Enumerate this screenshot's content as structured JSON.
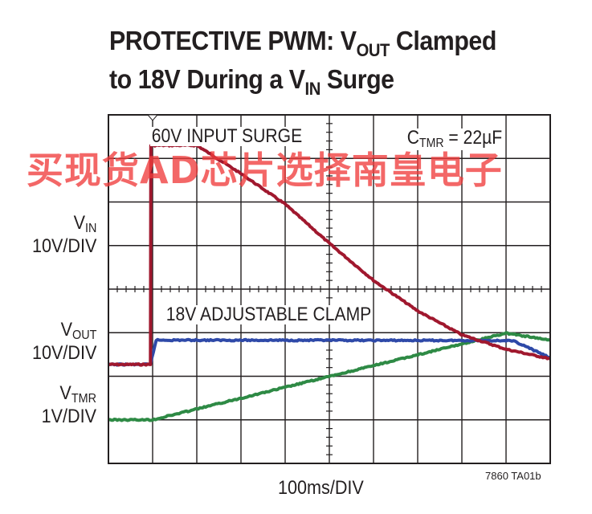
{
  "title": {
    "line1_prefix": "PROTECTIVE PWM: V",
    "line1_sub": "OUT",
    "line1_suffix": " Clamped",
    "line2_prefix": "to 18V During a V",
    "line2_sub": "IN",
    "line2_suffix": " Surge"
  },
  "channels": [
    {
      "symbol": "V",
      "sub": "IN",
      "scale": "10V/DIV",
      "color": "#a0182e"
    },
    {
      "symbol": "V",
      "sub": "OUT",
      "scale": "10V/DIV",
      "color": "#2e49a8"
    },
    {
      "symbol": "V",
      "sub": "TMR",
      "scale": "1V/DIV",
      "color": "#2e8a45"
    }
  ],
  "annotations": {
    "input_surge": "60V INPUT SURGE",
    "ctmr_prefix": "C",
    "ctmr_sub": "TMR",
    "ctmr_suffix": " = 22µF",
    "clamp": "18V ADJUSTABLE CLAMP"
  },
  "xlabel": "100ms/DIV",
  "figure_code": "7860 TA01b",
  "watermark": "买现货AD芯片选择南皇电子",
  "chart_data": {
    "type": "line",
    "x_unit": "ms",
    "x_range": [
      0,
      1000
    ],
    "grid": true,
    "series": [
      {
        "name": "VIN",
        "scale": "10V/DIV",
        "points_div": [
          [
            0,
            2.27
          ],
          [
            0.95,
            2.27
          ],
          [
            0.96,
            7.3
          ],
          [
            1.08,
            7.3
          ],
          [
            2.0,
            7.3
          ],
          [
            3.0,
            6.65
          ],
          [
            4.0,
            5.95
          ],
          [
            5.0,
            5.05
          ],
          [
            6.0,
            4.2
          ],
          [
            7.0,
            3.5
          ],
          [
            8.0,
            2.95
          ],
          [
            9.0,
            2.62
          ],
          [
            10.0,
            2.4
          ]
        ]
      },
      {
        "name": "VOUT",
        "scale": "10V/DIV",
        "points_div": [
          [
            0,
            2.27
          ],
          [
            0.95,
            2.27
          ],
          [
            1.08,
            2.83
          ],
          [
            9.0,
            2.82
          ],
          [
            9.2,
            2.8
          ],
          [
            10.0,
            2.42
          ]
        ]
      },
      {
        "name": "VTMR",
        "scale": "1V/DIV",
        "points_div": [
          [
            0,
            1.0
          ],
          [
            1.0,
            1.0
          ],
          [
            9.0,
            2.99
          ],
          [
            10.0,
            2.83
          ]
        ]
      }
    ]
  }
}
